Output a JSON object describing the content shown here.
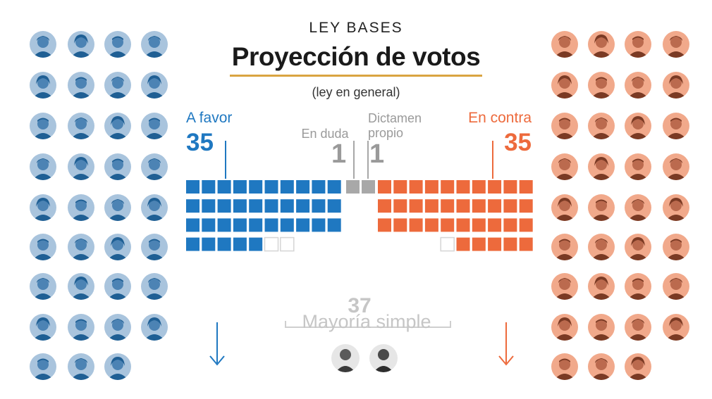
{
  "header": {
    "kicker": "LEY BASES",
    "title": "Proyección de votos",
    "subtitle": "(ley en general)"
  },
  "colors": {
    "favor": "#1f78c1",
    "contra": "#ed6a3c",
    "duda": "#a8a8a8",
    "empty": "#d5d5d5",
    "title_rule": "#d9a441"
  },
  "chart_data": {
    "type": "waffle",
    "total_seats": 72,
    "series": [
      {
        "name": "A favor",
        "value": 35
      },
      {
        "name": "En duda",
        "value": 1
      },
      {
        "name": "Dictamen propio",
        "value": 1
      },
      {
        "name": "En contra",
        "value": 35
      }
    ],
    "threshold": {
      "label": "Mayoría simple",
      "value": 37
    }
  },
  "labels": {
    "favor": "A favor",
    "favor_count": "35",
    "contra": "En contra",
    "contra_count": "35",
    "duda": "En duda",
    "duda_count": "1",
    "dictamen": "Dictamen propio",
    "dictamen_count": "1",
    "mayoria_count": "37",
    "mayoria": "Mayoría simple"
  },
  "portraits": {
    "left_count": 35,
    "right_count": 35,
    "center_count": 2
  }
}
